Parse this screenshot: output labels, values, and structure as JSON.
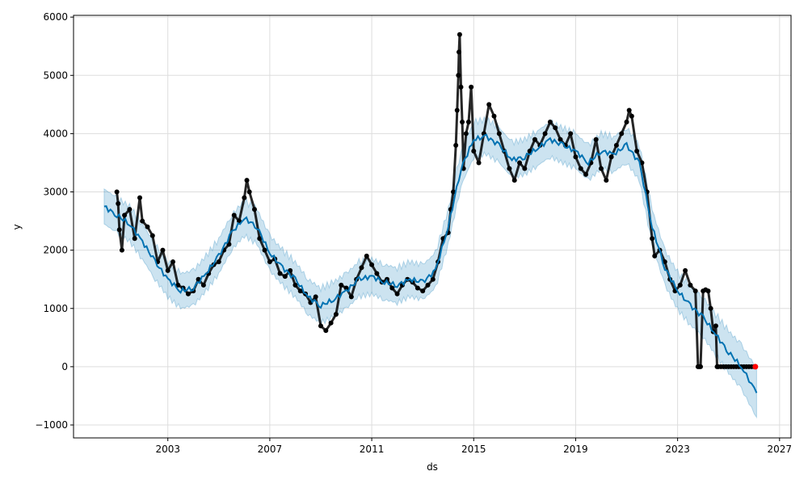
{
  "chart_data": {
    "type": "line",
    "title": "",
    "xlabel": "ds",
    "ylabel": "y",
    "xlim": [
      1999.3,
      2027.45
    ],
    "ylim": [
      -1222,
      6030
    ],
    "grid": true,
    "xticks": [
      2003,
      2007,
      2011,
      2015,
      2019,
      2023,
      2027
    ],
    "xtick_labels": [
      "2003",
      "2007",
      "2011",
      "2015",
      "2019",
      "2023",
      "2027"
    ],
    "yticks": [
      -1000,
      0,
      1000,
      2000,
      3000,
      4000,
      5000,
      6000
    ],
    "ytick_labels": [
      "−1000",
      "0",
      "1000",
      "2000",
      "3000",
      "4000",
      "5000",
      "6000"
    ],
    "colors": {
      "forecast": "#0072B2",
      "band": "#0072B2",
      "observed": "#000000",
      "highlight": "#ff0000"
    },
    "forecast": {
      "name": "yhat",
      "x": [
        2000.5,
        2001,
        2001.5,
        2002,
        2002.5,
        2003,
        2003.5,
        2004,
        2004.5,
        2005,
        2005.5,
        2006,
        2006.5,
        2007,
        2007.5,
        2008,
        2008.5,
        2009,
        2009.5,
        2010,
        2010.5,
        2011,
        2011.5,
        2012,
        2012.5,
        2013,
        2013.5,
        2014,
        2014.5,
        2015,
        2015.5,
        2016,
        2016.5,
        2017,
        2017.5,
        2018,
        2018.5,
        2019,
        2019.5,
        2020,
        2020.5,
        2021,
        2021.5,
        2022,
        2022.5,
        2023,
        2023.5,
        2024,
        2024.5,
        2025,
        2025.5,
        2026.1
      ],
      "yhat": [
        2750,
        2600,
        2450,
        2150,
        1800,
        1500,
        1300,
        1350,
        1600,
        1900,
        2300,
        2550,
        2400,
        1950,
        1700,
        1500,
        1200,
        1050,
        1150,
        1300,
        1500,
        1550,
        1450,
        1400,
        1500,
        1450,
        1650,
        2400,
        3400,
        3900,
        3950,
        3800,
        3550,
        3600,
        3750,
        3900,
        3800,
        3700,
        3500,
        3700,
        3650,
        3800,
        3500,
        2400,
        1700,
        1300,
        1050,
        850,
        550,
        250,
        0,
        -450
      ],
      "band_halfwidth": [
        300,
        300,
        300,
        300,
        300,
        300,
        300,
        300,
        300,
        300,
        300,
        300,
        300,
        300,
        300,
        300,
        300,
        300,
        300,
        300,
        300,
        300,
        300,
        300,
        300,
        300,
        300,
        300,
        300,
        300,
        300,
        300,
        300,
        300,
        300,
        300,
        300,
        300,
        300,
        300,
        300,
        300,
        300,
        300,
        300,
        320,
        330,
        340,
        350,
        360,
        380,
        420
      ]
    },
    "observed": [
      [
        2001.0,
        3000
      ],
      [
        2001.05,
        2800
      ],
      [
        2001.1,
        2350
      ],
      [
        2001.2,
        2000
      ],
      [
        2001.3,
        2600
      ],
      [
        2001.5,
        2700
      ],
      [
        2001.7,
        2200
      ],
      [
        2001.9,
        2900
      ],
      [
        2002.0,
        2500
      ],
      [
        2002.2,
        2400
      ],
      [
        2002.4,
        2250
      ],
      [
        2002.6,
        1800
      ],
      [
        2002.8,
        2000
      ],
      [
        2003.0,
        1650
      ],
      [
        2003.2,
        1800
      ],
      [
        2003.4,
        1400
      ],
      [
        2003.6,
        1350
      ],
      [
        2003.8,
        1250
      ],
      [
        2004.0,
        1300
      ],
      [
        2004.2,
        1500
      ],
      [
        2004.4,
        1400
      ],
      [
        2004.6,
        1600
      ],
      [
        2004.8,
        1750
      ],
      [
        2005.0,
        1800
      ],
      [
        2005.2,
        2000
      ],
      [
        2005.4,
        2100
      ],
      [
        2005.6,
        2600
      ],
      [
        2005.8,
        2500
      ],
      [
        2006.0,
        2900
      ],
      [
        2006.1,
        3200
      ],
      [
        2006.2,
        3000
      ],
      [
        2006.4,
        2700
      ],
      [
        2006.6,
        2200
      ],
      [
        2006.8,
        2000
      ],
      [
        2007.0,
        1800
      ],
      [
        2007.2,
        1850
      ],
      [
        2007.4,
        1600
      ],
      [
        2007.6,
        1550
      ],
      [
        2007.8,
        1650
      ],
      [
        2008.0,
        1400
      ],
      [
        2008.2,
        1300
      ],
      [
        2008.4,
        1250
      ],
      [
        2008.6,
        1100
      ],
      [
        2008.8,
        1200
      ],
      [
        2009.0,
        700
      ],
      [
        2009.2,
        620
      ],
      [
        2009.4,
        750
      ],
      [
        2009.6,
        900
      ],
      [
        2009.8,
        1400
      ],
      [
        2010.0,
        1350
      ],
      [
        2010.2,
        1200
      ],
      [
        2010.4,
        1500
      ],
      [
        2010.6,
        1700
      ],
      [
        2010.8,
        1900
      ],
      [
        2011.0,
        1750
      ],
      [
        2011.2,
        1600
      ],
      [
        2011.4,
        1450
      ],
      [
        2011.6,
        1500
      ],
      [
        2011.8,
        1350
      ],
      [
        2012.0,
        1250
      ],
      [
        2012.2,
        1400
      ],
      [
        2012.4,
        1500
      ],
      [
        2012.6,
        1450
      ],
      [
        2012.8,
        1350
      ],
      [
        2013.0,
        1300
      ],
      [
        2013.2,
        1400
      ],
      [
        2013.4,
        1500
      ],
      [
        2013.6,
        1800
      ],
      [
        2013.8,
        2200
      ],
      [
        2014.0,
        2300
      ],
      [
        2014.1,
        2700
      ],
      [
        2014.2,
        3000
      ],
      [
        2014.3,
        3800
      ],
      [
        2014.35,
        4400
      ],
      [
        2014.4,
        5000
      ],
      [
        2014.42,
        5400
      ],
      [
        2014.45,
        5700
      ],
      [
        2014.5,
        4800
      ],
      [
        2014.55,
        4200
      ],
      [
        2014.6,
        3400
      ],
      [
        2014.7,
        4000
      ],
      [
        2014.8,
        4200
      ],
      [
        2014.9,
        4800
      ],
      [
        2015.0,
        3700
      ],
      [
        2015.2,
        3500
      ],
      [
        2015.4,
        4000
      ],
      [
        2015.6,
        4500
      ],
      [
        2015.8,
        4300
      ],
      [
        2016.0,
        4000
      ],
      [
        2016.2,
        3700
      ],
      [
        2016.4,
        3400
      ],
      [
        2016.6,
        3200
      ],
      [
        2016.8,
        3500
      ],
      [
        2017.0,
        3400
      ],
      [
        2017.2,
        3700
      ],
      [
        2017.4,
        3900
      ],
      [
        2017.6,
        3800
      ],
      [
        2017.8,
        4000
      ],
      [
        2018.0,
        4200
      ],
      [
        2018.2,
        4100
      ],
      [
        2018.4,
        3900
      ],
      [
        2018.6,
        3800
      ],
      [
        2018.8,
        4000
      ],
      [
        2019.0,
        3600
      ],
      [
        2019.2,
        3400
      ],
      [
        2019.4,
        3300
      ],
      [
        2019.6,
        3500
      ],
      [
        2019.8,
        3900
      ],
      [
        2020.0,
        3400
      ],
      [
        2020.2,
        3200
      ],
      [
        2020.4,
        3600
      ],
      [
        2020.6,
        3800
      ],
      [
        2020.8,
        4000
      ],
      [
        2021.0,
        4200
      ],
      [
        2021.1,
        4400
      ],
      [
        2021.2,
        4300
      ],
      [
        2021.4,
        3700
      ],
      [
        2021.6,
        3500
      ],
      [
        2021.8,
        3000
      ],
      [
        2022.0,
        2200
      ],
      [
        2022.1,
        1900
      ],
      [
        2022.3,
        2000
      ],
      [
        2022.5,
        1800
      ],
      [
        2022.7,
        1500
      ],
      [
        2022.9,
        1300
      ],
      [
        2023.1,
        1400
      ],
      [
        2023.3,
        1650
      ],
      [
        2023.5,
        1400
      ],
      [
        2023.7,
        1300
      ],
      [
        2023.8,
        0
      ],
      [
        2023.85,
        0
      ],
      [
        2023.9,
        0
      ],
      [
        2024.0,
        1300
      ],
      [
        2024.1,
        1320
      ],
      [
        2024.2,
        1300
      ],
      [
        2024.3,
        1000
      ],
      [
        2024.4,
        600
      ],
      [
        2024.5,
        700
      ],
      [
        2024.55,
        0
      ],
      [
        2024.6,
        0
      ],
      [
        2024.7,
        0
      ],
      [
        2024.8,
        0
      ],
      [
        2024.9,
        0
      ],
      [
        2025.0,
        0
      ],
      [
        2025.1,
        0
      ],
      [
        2025.2,
        0
      ],
      [
        2025.3,
        0
      ],
      [
        2025.4,
        0
      ],
      [
        2025.5,
        0
      ],
      [
        2025.6,
        0
      ],
      [
        2025.7,
        0
      ],
      [
        2025.8,
        0
      ],
      [
        2025.9,
        0
      ],
      [
        2026.0,
        0
      ]
    ],
    "highlight_point": [
      2026.05,
      0
    ]
  }
}
